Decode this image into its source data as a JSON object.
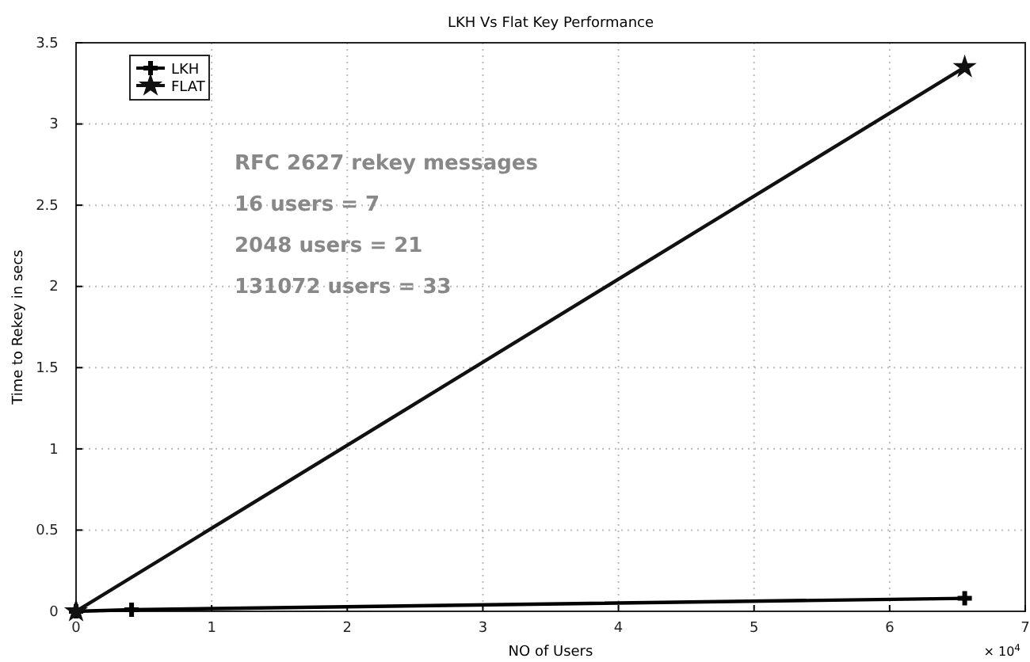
{
  "chart_data": {
    "type": "line",
    "title": "LKH Vs Flat Key Performance",
    "xlabel": "NO of Users",
    "ylabel": "Time to Rekey in secs",
    "series": [
      {
        "name": "LKH",
        "color": "#000000",
        "marker": "cross",
        "x": [
          0,
          0.4096,
          6.5536
        ],
        "values": [
          0,
          0.01,
          0.08
        ]
      },
      {
        "name": "FLAT",
        "color": "#111111",
        "marker": "star",
        "x": [
          0,
          6.5536
        ],
        "values": [
          0,
          3.35
        ]
      }
    ],
    "xlim": [
      0,
      7
    ],
    "xticks": [
      0,
      1,
      2,
      3,
      4,
      5,
      6,
      7
    ],
    "ylim": [
      0,
      3.5
    ],
    "yticks": [
      0,
      0.5,
      1,
      1.5,
      2,
      2.5,
      3,
      3.5
    ],
    "grid": true,
    "legend": "top left",
    "annotations": [
      "RFC 2627 rekey messages",
      "16 users = 7",
      "2048 users = 21",
      "131072 users = 33",
      "× 10$^{4}$"
    ]
  }
}
